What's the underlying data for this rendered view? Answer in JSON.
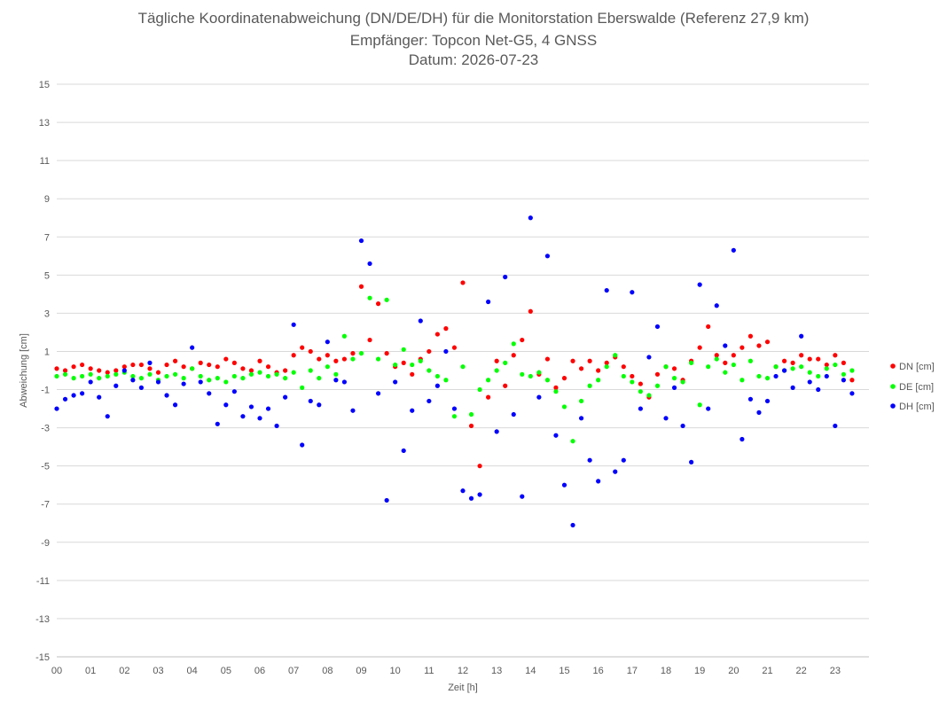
{
  "chart_data": {
    "type": "scatter",
    "title": "Tägliche Koordinatenabweichung (DN/DE/DH) für die Monitorstation Eberswalde (Referenz 27,9 km)",
    "subtitle": "Empfänger: Topcon Net-G5, 4 GNSS",
    "subtitle2": "Datum: 2026-07-23",
    "xlabel": "Zeit [h]",
    "ylabel": "Abweichung [cm]",
    "xlim": [
      0,
      24
    ],
    "ylim": [
      -15,
      15
    ],
    "x_ticks": [
      "00",
      "01",
      "02",
      "03",
      "04",
      "05",
      "06",
      "07",
      "08",
      "09",
      "10",
      "11",
      "12",
      "13",
      "14",
      "15",
      "16",
      "17",
      "18",
      "19",
      "20",
      "21",
      "22",
      "23"
    ],
    "y_ticks": [
      15,
      13,
      11,
      9,
      7,
      5,
      3,
      1,
      -1,
      -3,
      -5,
      -7,
      -9,
      -11,
      -13,
      -15
    ],
    "grid": "horizontal",
    "legend_position": "right",
    "series": [
      {
        "name": "DN [cm]",
        "color": "#ff0000",
        "x": [
          0.0,
          0.25,
          0.5,
          0.75,
          1.0,
          1.25,
          1.5,
          1.75,
          2.0,
          2.25,
          2.5,
          2.75,
          3.0,
          3.25,
          3.5,
          3.75,
          4.0,
          4.25,
          4.5,
          4.75,
          5.0,
          5.25,
          5.5,
          5.75,
          6.0,
          6.25,
          6.5,
          6.75,
          7.0,
          7.25,
          7.5,
          7.75,
          8.0,
          8.25,
          8.5,
          8.75,
          9.0,
          9.25,
          9.5,
          9.75,
          10.0,
          10.25,
          10.5,
          10.75,
          11.0,
          11.25,
          11.5,
          11.75,
          12.0,
          12.25,
          12.5,
          12.75,
          13.0,
          13.25,
          13.5,
          13.75,
          14.0,
          14.25,
          14.5,
          14.75,
          15.0,
          15.25,
          15.5,
          15.75,
          16.0,
          16.25,
          16.5,
          16.75,
          17.0,
          17.25,
          17.5,
          17.75,
          18.0,
          18.25,
          18.5,
          18.75,
          19.0,
          19.25,
          19.5,
          19.75,
          20.0,
          20.25,
          20.5,
          20.75,
          21.0,
          21.25,
          21.5,
          21.75,
          22.0,
          22.25,
          22.5,
          22.75,
          23.0,
          23.25,
          23.5
        ],
        "values": [
          0.1,
          0.0,
          0.2,
          0.3,
          0.1,
          0.0,
          -0.1,
          0.0,
          0.2,
          0.3,
          0.3,
          0.1,
          -0.1,
          0.3,
          0.5,
          0.2,
          0.1,
          0.4,
          0.3,
          0.2,
          0.6,
          0.4,
          0.1,
          0.0,
          0.5,
          0.2,
          -0.1,
          0.0,
          0.8,
          1.2,
          1.0,
          0.6,
          0.8,
          0.5,
          0.6,
          0.9,
          4.4,
          1.6,
          3.5,
          0.9,
          0.2,
          0.4,
          -0.2,
          0.6,
          1.0,
          1.9,
          2.2,
          1.2,
          4.6,
          -2.9,
          -5.0,
          -1.4,
          0.5,
          -0.8,
          0.8,
          1.6,
          3.1,
          -0.2,
          0.6,
          -0.9,
          -0.4,
          0.5,
          0.1,
          0.5,
          0.0,
          0.4,
          0.7,
          0.2,
          -0.3,
          -0.7,
          -1.4,
          -0.2,
          0.2,
          0.1,
          -0.5,
          0.5,
          1.2,
          2.3,
          0.8,
          0.4,
          0.8,
          1.2,
          1.8,
          1.3,
          1.5,
          0.2,
          0.5,
          0.4,
          0.8,
          0.6,
          0.6,
          0.3,
          0.8,
          0.4,
          -0.5
        ]
      },
      {
        "name": "DE [cm]",
        "color": "#00ff00",
        "x": [
          0.0,
          0.25,
          0.5,
          0.75,
          1.0,
          1.25,
          1.5,
          1.75,
          2.0,
          2.25,
          2.5,
          2.75,
          3.0,
          3.25,
          3.5,
          3.75,
          4.0,
          4.25,
          4.5,
          4.75,
          5.0,
          5.25,
          5.5,
          5.75,
          6.0,
          6.25,
          6.5,
          6.75,
          7.0,
          7.25,
          7.5,
          7.75,
          8.0,
          8.25,
          8.5,
          8.75,
          9.0,
          9.25,
          9.5,
          9.75,
          10.0,
          10.25,
          10.5,
          10.75,
          11.0,
          11.25,
          11.5,
          11.75,
          12.0,
          12.25,
          12.5,
          12.75,
          13.0,
          13.25,
          13.5,
          13.75,
          14.0,
          14.25,
          14.5,
          14.75,
          15.0,
          15.25,
          15.5,
          15.75,
          16.0,
          16.25,
          16.5,
          16.75,
          17.0,
          17.25,
          17.5,
          17.75,
          18.0,
          18.25,
          18.5,
          18.75,
          19.0,
          19.25,
          19.5,
          19.75,
          20.0,
          20.25,
          20.5,
          20.75,
          21.0,
          21.25,
          21.5,
          21.75,
          22.0,
          22.25,
          22.5,
          22.75,
          23.0,
          23.25,
          23.5
        ],
        "values": [
          -0.3,
          -0.2,
          -0.4,
          -0.3,
          -0.2,
          -0.4,
          -0.3,
          -0.2,
          -0.1,
          -0.3,
          -0.4,
          -0.2,
          -0.5,
          -0.3,
          -0.2,
          -0.4,
          0.1,
          -0.3,
          -0.5,
          -0.4,
          -0.6,
          -0.3,
          -0.4,
          -0.2,
          -0.1,
          -0.3,
          -0.2,
          -0.4,
          -0.1,
          -0.9,
          0.0,
          -0.4,
          0.2,
          -0.2,
          1.8,
          0.6,
          0.9,
          3.8,
          0.6,
          3.7,
          0.3,
          1.1,
          0.3,
          0.5,
          0.0,
          -0.3,
          -0.5,
          -2.4,
          0.2,
          -2.3,
          -1.0,
          -0.5,
          0.0,
          0.4,
          1.4,
          -0.2,
          -0.3,
          -0.1,
          -0.5,
          -1.1,
          -1.9,
          -3.7,
          -1.6,
          -0.8,
          -0.5,
          0.2,
          0.8,
          -0.3,
          -0.6,
          -1.1,
          -1.3,
          -0.8,
          0.2,
          -0.4,
          -0.6,
          0.4,
          -1.8,
          0.2,
          0.6,
          -0.1,
          0.3,
          -0.5,
          0.5,
          -0.3,
          -0.4,
          0.2,
          0.0,
          0.1,
          0.2,
          -0.1,
          -0.3,
          0.1,
          0.3,
          -0.2,
          0.0
        ]
      },
      {
        "name": "DH [cm]",
        "color": "#0000ff",
        "x": [
          0.0,
          0.25,
          0.5,
          0.75,
          1.0,
          1.25,
          1.5,
          1.75,
          2.0,
          2.25,
          2.5,
          2.75,
          3.0,
          3.25,
          3.5,
          3.75,
          4.0,
          4.25,
          4.5,
          4.75,
          5.0,
          5.25,
          5.5,
          5.75,
          6.0,
          6.25,
          6.5,
          6.75,
          7.0,
          7.25,
          7.5,
          7.75,
          8.0,
          8.25,
          8.5,
          8.75,
          9.0,
          9.25,
          9.5,
          9.75,
          10.0,
          10.25,
          10.5,
          10.75,
          11.0,
          11.25,
          11.5,
          11.75,
          12.0,
          12.25,
          12.5,
          12.75,
          13.0,
          13.25,
          13.5,
          13.75,
          14.0,
          14.25,
          14.5,
          14.75,
          15.0,
          15.25,
          15.5,
          15.75,
          16.0,
          16.25,
          16.5,
          16.75,
          17.0,
          17.25,
          17.5,
          17.75,
          18.0,
          18.25,
          18.5,
          18.75,
          19.0,
          19.25,
          19.5,
          19.75,
          20.0,
          20.25,
          20.5,
          20.75,
          21.0,
          21.25,
          21.5,
          21.75,
          22.0,
          22.25,
          22.5,
          22.75,
          23.0,
          23.25,
          23.5
        ],
        "values": [
          -2.0,
          -1.5,
          -1.3,
          -1.2,
          -0.6,
          -1.4,
          -2.4,
          -0.8,
          0.0,
          -0.5,
          -0.9,
          0.4,
          -0.6,
          -1.3,
          -1.8,
          -0.7,
          1.2,
          -0.6,
          -1.2,
          -2.8,
          -1.8,
          -1.1,
          -2.4,
          -1.9,
          -2.5,
          -2.0,
          -2.9,
          -1.4,
          2.4,
          -3.9,
          -1.6,
          -1.8,
          1.5,
          -0.5,
          -0.6,
          -2.1,
          6.8,
          5.6,
          -1.2,
          -6.8,
          -0.6,
          -4.2,
          -2.1,
          2.6,
          -1.6,
          -0.8,
          1.0,
          -2.0,
          -6.3,
          -6.7,
          -6.5,
          3.6,
          -3.2,
          4.9,
          -2.3,
          -6.6,
          8.0,
          -1.4,
          6.0,
          -3.4,
          -6.0,
          -8.1,
          -2.5,
          -4.7,
          -5.8,
          4.2,
          -5.3,
          -4.7,
          4.1,
          -2.0,
          0.7,
          2.3,
          -2.5,
          -0.9,
          -2.9,
          -4.8,
          4.5,
          -2.0,
          3.4,
          1.3,
          6.3,
          -3.6,
          -1.5,
          -2.2,
          -1.6,
          -0.3,
          0.0,
          -0.9,
          1.8,
          -0.6,
          -1.0,
          -0.3,
          -2.9,
          -0.5,
          -1.2
        ]
      }
    ]
  }
}
